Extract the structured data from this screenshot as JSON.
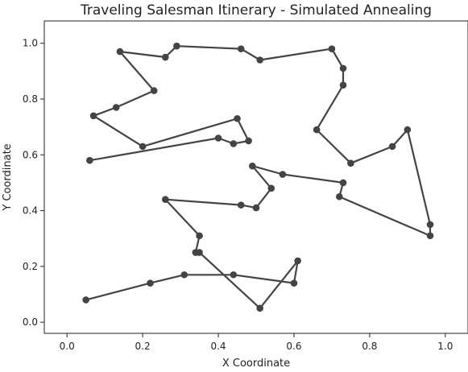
{
  "chart_data": {
    "type": "line",
    "title": "Traveling Salesman Itinerary - Simulated Annealing",
    "xlabel": "X Coordinate",
    "ylabel": "Y Coordinate",
    "xlim": [
      -0.06,
      1.06
    ],
    "ylim": [
      -0.04,
      1.08
    ],
    "xticks": [
      "0.0",
      "0.2",
      "0.4",
      "0.6",
      "0.8",
      "1.0"
    ],
    "yticks": [
      "0.0",
      "0.2",
      "0.4",
      "0.6",
      "0.8",
      "1.0"
    ],
    "grid": false,
    "line_color": "#444444",
    "marker_color": "#444444",
    "series": [
      {
        "x": [
          0.05,
          0.22,
          0.31,
          0.44,
          0.6,
          0.61,
          0.51,
          0.35,
          0.34,
          0.35,
          0.26,
          0.46,
          0.5,
          0.54,
          0.49,
          0.57,
          0.73,
          0.72,
          0.96,
          0.96,
          0.9,
          0.86,
          0.75,
          0.66,
          0.73,
          0.73,
          0.7,
          0.51,
          0.46,
          0.29,
          0.26,
          0.14,
          0.23,
          0.13,
          0.07,
          0.2,
          0.45,
          0.48,
          0.44,
          0.4,
          0.06
        ],
        "y": [
          0.08,
          0.14,
          0.17,
          0.17,
          0.14,
          0.22,
          0.05,
          0.25,
          0.25,
          0.31,
          0.44,
          0.42,
          0.41,
          0.48,
          0.56,
          0.53,
          0.5,
          0.45,
          0.31,
          0.35,
          0.69,
          0.63,
          0.57,
          0.69,
          0.85,
          0.91,
          0.98,
          0.94,
          0.98,
          0.99,
          0.95,
          0.97,
          0.83,
          0.77,
          0.74,
          0.63,
          0.73,
          0.65,
          0.64,
          0.66,
          0.58
        ]
      }
    ]
  }
}
